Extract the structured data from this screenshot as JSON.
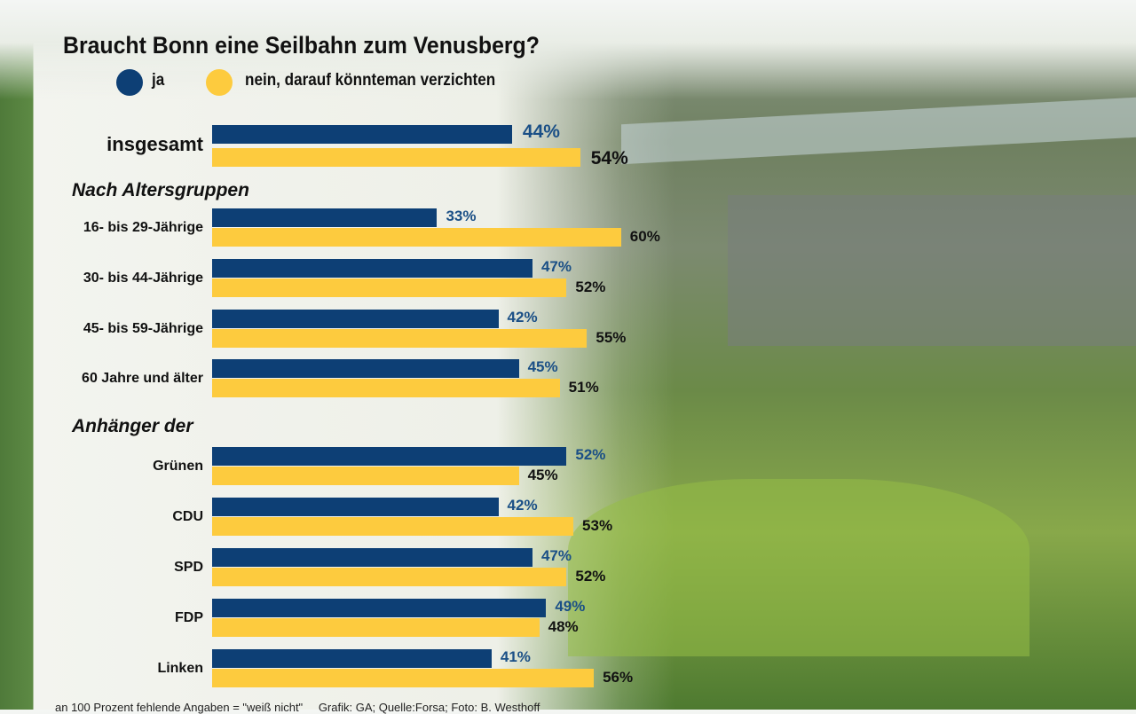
{
  "chart_data": {
    "type": "bar",
    "orientation": "horizontal",
    "title": "Braucht Bonn eine Seilbahn zum Venusberg?",
    "legend": [
      {
        "name": "ja",
        "color": "#0d3f75"
      },
      {
        "name": "nein, darauf könnteman verzichten",
        "color": "#fdcb3e"
      }
    ],
    "xlim": [
      0,
      100
    ],
    "groups": [
      {
        "heading": "",
        "rows": [
          {
            "label": "insgesamt",
            "ja": 44,
            "nein": 54
          }
        ]
      },
      {
        "heading": "Nach Altersgruppen",
        "rows": [
          {
            "label": "16- bis 29-Jährige",
            "ja": 33,
            "nein": 60
          },
          {
            "label": "30- bis 44-Jährige",
            "ja": 47,
            "nein": 52
          },
          {
            "label": "45- bis 59-Jährige",
            "ja": 42,
            "nein": 55
          },
          {
            "label": "60 Jahre und älter",
            "ja": 45,
            "nein": 51
          }
        ]
      },
      {
        "heading": "Anhänger der",
        "rows": [
          {
            "label": "Grünen",
            "ja": 52,
            "nein": 45
          },
          {
            "label": "CDU",
            "ja": 42,
            "nein": 53
          },
          {
            "label": "SPD",
            "ja": 47,
            "nein": 52
          },
          {
            "label": "FDP",
            "ja": 49,
            "nein": 48
          },
          {
            "label": "Linken",
            "ja": 41,
            "nein": 56
          }
        ]
      }
    ]
  },
  "footer": {
    "note": "an 100 Prozent fehlende Angaben = \"weiß nicht\"",
    "credit": "Grafik: GA; Quelle:Forsa; Foto: B. Westhoff"
  },
  "colors": {
    "ja": "#0d3f75",
    "nein": "#fdcb3e",
    "ja_label": "#1a4f86",
    "nein_label": "#111111"
  }
}
